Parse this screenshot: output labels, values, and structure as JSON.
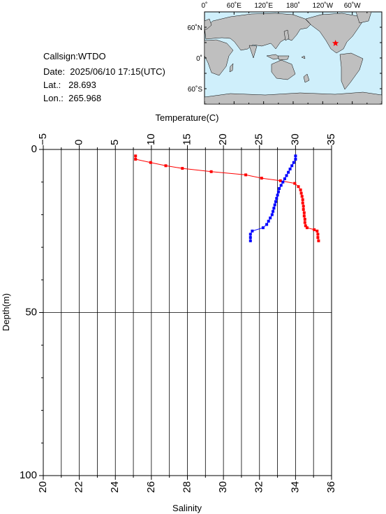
{
  "station": {
    "callsign": "Callsign:WTDO",
    "date": "Date:  2025/06/10 17:15(UTC)",
    "lat": "Lat.:   28.693",
    "lon": "Lon.:  265.968"
  },
  "map": {
    "top_labels": [
      "0˚",
      "60˚E",
      "120˚E",
      "180˚",
      "120˚W",
      "60˚W"
    ],
    "lat_labels": [
      "60˚N",
      "0˚",
      "60˚S"
    ],
    "ocean_color": "#cfeffb",
    "land_color": "#bfbfbf",
    "marker_color": "#ff0000",
    "marker_icon": "star-icon",
    "station_lon": 265.968,
    "station_lat": 28.693
  },
  "chart_data": {
    "type": "line",
    "ylabel": "Depth(m)",
    "ylim": [
      0,
      100
    ],
    "y_inverted": true,
    "y_ticks": [
      "0",
      "50",
      "100"
    ],
    "grid": true,
    "temperature_axis": {
      "label": "Temperature(C)",
      "range": [
        -5,
        35
      ],
      "ticks": [
        "−5",
        "0",
        "5",
        "10",
        "15",
        "20",
        "25",
        "30",
        "35"
      ]
    },
    "salinity_axis": {
      "label": "Salinity",
      "range": [
        20,
        36
      ],
      "ticks": [
        "20",
        "22",
        "24",
        "26",
        "28",
        "30",
        "32",
        "34",
        "36"
      ]
    },
    "series": [
      {
        "axis": "temperature",
        "color": "#ff0000",
        "points": [
          [
            7.8,
            2
          ],
          [
            7.8,
            3
          ],
          [
            9.9,
            4
          ],
          [
            12.0,
            5
          ],
          [
            14.3,
            5.8
          ],
          [
            18.3,
            6.8
          ],
          [
            23.1,
            7.8
          ],
          [
            25.3,
            8.8
          ],
          [
            27.9,
            9.6
          ],
          [
            29.9,
            10.4
          ],
          [
            30.4,
            11.4
          ],
          [
            30.7,
            12.4
          ],
          [
            30.8,
            13.4
          ],
          [
            30.9,
            14.4
          ],
          [
            31.0,
            15.4
          ],
          [
            31.0,
            16.4
          ],
          [
            31.1,
            17.4
          ],
          [
            31.1,
            18.4
          ],
          [
            31.2,
            19.4
          ],
          [
            31.2,
            20.4
          ],
          [
            31.3,
            21.4
          ],
          [
            31.3,
            22.4
          ],
          [
            31.4,
            23.4
          ],
          [
            31.6,
            24.0
          ],
          [
            32.6,
            24.6
          ],
          [
            33.0,
            25.0
          ],
          [
            33.1,
            26.0
          ],
          [
            33.1,
            27.0
          ],
          [
            33.2,
            28.0
          ]
        ]
      },
      {
        "axis": "salinity",
        "color": "#0000ff",
        "points": [
          [
            34.0,
            2
          ],
          [
            34.0,
            3
          ],
          [
            33.9,
            4
          ],
          [
            33.8,
            5
          ],
          [
            33.7,
            6
          ],
          [
            33.6,
            7
          ],
          [
            33.5,
            8
          ],
          [
            33.4,
            9
          ],
          [
            33.3,
            10
          ],
          [
            33.2,
            11
          ],
          [
            33.1,
            12
          ],
          [
            33.05,
            13
          ],
          [
            33.0,
            14
          ],
          [
            32.95,
            15
          ],
          [
            32.9,
            16
          ],
          [
            32.85,
            17
          ],
          [
            32.8,
            18
          ],
          [
            32.75,
            19
          ],
          [
            32.7,
            20
          ],
          [
            32.6,
            21
          ],
          [
            32.5,
            22
          ],
          [
            32.4,
            23
          ],
          [
            32.2,
            24
          ],
          [
            31.6,
            25
          ],
          [
            31.5,
            26
          ],
          [
            31.5,
            27
          ],
          [
            31.5,
            28
          ]
        ]
      }
    ]
  }
}
